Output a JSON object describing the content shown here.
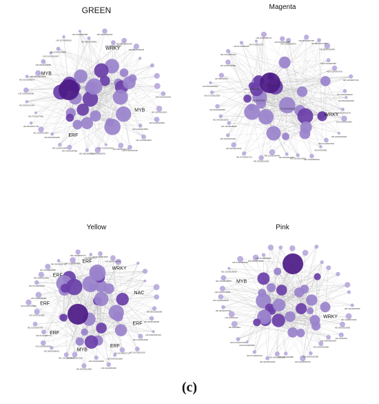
{
  "caption": "(c)",
  "colors": {
    "node_light": "#b9a9dc",
    "node_mid": "#9a82cc",
    "node_dark": "#6a3fa8",
    "node_hub": "#4d1a86",
    "edge": "#b5b5b5",
    "label": "#333333"
  },
  "panels": [
    {
      "title": "GREEN",
      "tf_labels": [
        "MYB",
        "ERF",
        "MYB",
        "WRKY"
      ],
      "gene_labels": [
        "HD.02G0002430",
        "HD.03G0016010",
        "HD.01G0016050",
        "HD.14G0013500",
        "HD.12G0004300",
        "HD.07G0011930",
        "HD.09G0015170",
        "HD.01G0014910",
        "HD.04G0009270",
        "HD.08G0007310",
        "HD.14G0004460",
        "HD.11G0013640",
        "HD.06G0004460",
        "HD.10G0013000",
        "HD.05G0014740",
        "HD.07G0017960",
        "HD.02G0012040",
        "HD.13G0005330",
        "HD.01G0006870",
        "HD.05G0007820",
        "HD.03G0014830",
        "HD.01G0014180",
        "HD.04G0012660",
        "HD.11G0000620",
        "HD.15G0016580",
        "HD.06G0013860",
        "HD.02G0003320",
        "HD.03G0009960",
        "HD.03G0001940",
        "HD.03G0005240"
      ]
    },
    {
      "title": "Magenta",
      "tf_labels": [
        "WRKY"
      ],
      "gene_labels": [
        "HD.06G0002940",
        "HD.04G0002370",
        "HD.05G0003553",
        "HD.04G0022600",
        "HD.01G0003790",
        "HD.04010691",
        "HD.15G0005440",
        "HD.12G0010180",
        "HD.02G0014390",
        "HD.10G0004440",
        "HD.03G0016030",
        "HD.07G0002710",
        "HD.01G0021500",
        "HD.12G0016320",
        "HD.13G0008280",
        "HD.04G0002950",
        "HD.03G0006000",
        "HD.07G0002330",
        "HD.05G0002640",
        "HD.08011520",
        "HD.14G0016550",
        "HD.12G0013700",
        "HD.01G0001290",
        "HD.03G010172",
        "HD.10G0005170",
        "HD.02G0022060",
        "HD.13G0008570",
        "HD.02G0004790",
        "HD.06G0013790",
        "HD.09G0002040",
        "HD.07G0003780",
        "HD.01G0001410",
        "HD.12G0007140",
        "HD.13G0000020",
        "HD.06G0002370",
        "HD.02G0013640",
        "HD.01G0002530",
        "HD.04G0003650"
      ]
    },
    {
      "title": "Yellow",
      "tf_labels": [
        "ERF",
        "ERF",
        "MYB",
        "ERF",
        "ERF",
        "ERF",
        "ERF",
        "WRKY",
        "NAC"
      ],
      "gene_labels": [
        "HD.06G0000090",
        "HD.06G0003520",
        "HD.09G0011340",
        "HD.11G0004240",
        "HD.01G0000150",
        "HD.01G0002710",
        "HD.04G0010550",
        "HD.11G0005400",
        "HD.13G0001180",
        "HD.02G0011940",
        "HD.06G0017500",
        "HD.13G0000930",
        "HD.04G0006610",
        "HD.02G0009250",
        "HD.01G0008770",
        "HD.10G0009700",
        "HD.13G0013850",
        "HD.04G0014800",
        "HD.13G0005380",
        "HD.07G0001220",
        "HD.03G0012540",
        "HD.12G0001990",
        "HD.02G0002720",
        "HD.15G0004500",
        "HD.14G0001270",
        "HD.06061217",
        "HD.01G0004200",
        "HD.02G0002000"
      ]
    },
    {
      "title": "Pink",
      "tf_labels": [
        "WRKY",
        "MYB"
      ],
      "gene_labels": [
        "HD.12G0000780",
        "HD.11G0019400",
        "HD.03G0010800",
        "HD.1G00513",
        "HD.09G0005340",
        "HD.01G0016650",
        "HD.09G0010380",
        "HD.04G0006750",
        "HD.04G0006980",
        "HD.09G0001060",
        "HD.04G0019100",
        "HD.07G0001020",
        "HD.01G0000860",
        "HD.07G0017510",
        "HD.11G0854",
        "HD.07G06120",
        "HD.02G0007530",
        "HD.13G0005830",
        "HD.04G0019800",
        "HD.15G0000650",
        "HD.10G0014050",
        "HD.01G0002190",
        "HD.02G0012660",
        "HD.11G0000060"
      ]
    }
  ]
}
